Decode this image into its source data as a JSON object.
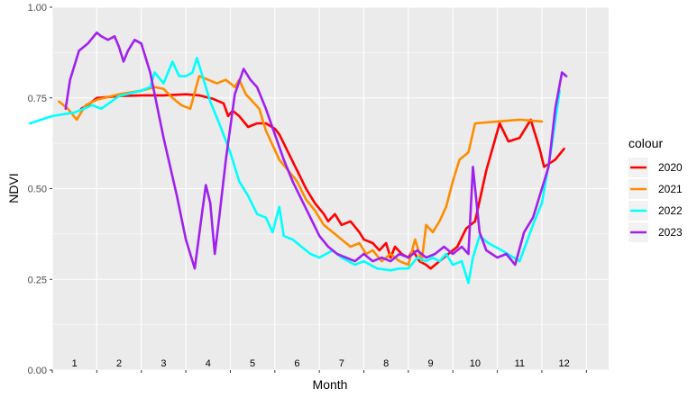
{
  "chart_data": {
    "type": "line",
    "xlabel": "Month",
    "ylabel": "NDVI",
    "xlim": [
      0,
      12.5
    ],
    "ylim": [
      0,
      1
    ],
    "x_ticks": [
      {
        "x": 0.5,
        "label": "1"
      },
      {
        "x": 1.5,
        "label": "2"
      },
      {
        "x": 2.5,
        "label": "3"
      },
      {
        "x": 3.5,
        "label": "4"
      },
      {
        "x": 4.5,
        "label": "5"
      },
      {
        "x": 5.5,
        "label": "6"
      },
      {
        "x": 6.5,
        "label": "7"
      },
      {
        "x": 7.5,
        "label": "8"
      },
      {
        "x": 8.5,
        "label": "9"
      },
      {
        "x": 9.5,
        "label": "10"
      },
      {
        "x": 10.5,
        "label": "11"
      },
      {
        "x": 11.5,
        "label": "12"
      }
    ],
    "y_ticks": [
      {
        "y": 0,
        "label": "0.00"
      },
      {
        "y": 0.25,
        "label": "0.25"
      },
      {
        "y": 0.5,
        "label": "0.50"
      },
      {
        "y": 0.75,
        "label": "0.75"
      },
      {
        "y": 1,
        "label": "1.00"
      }
    ],
    "grid": true,
    "legend": {
      "title": "colour",
      "position": "right"
    },
    "series": [
      {
        "name": "2020",
        "color": "#ff0000",
        "points": [
          [
            0.65,
            0.72
          ],
          [
            0.8,
            0.73
          ],
          [
            1.0,
            0.75
          ],
          [
            1.5,
            0.755
          ],
          [
            2.0,
            0.757
          ],
          [
            2.5,
            0.757
          ],
          [
            3.0,
            0.76
          ],
          [
            3.3,
            0.757
          ],
          [
            3.6,
            0.748
          ],
          [
            3.85,
            0.735
          ],
          [
            3.95,
            0.7
          ],
          [
            4.05,
            0.715
          ],
          [
            4.2,
            0.7
          ],
          [
            4.4,
            0.67
          ],
          [
            4.6,
            0.68
          ],
          [
            4.8,
            0.68
          ],
          [
            5.0,
            0.665
          ],
          [
            5.1,
            0.65
          ],
          [
            5.3,
            0.6
          ],
          [
            5.5,
            0.55
          ],
          [
            5.7,
            0.5
          ],
          [
            5.9,
            0.46
          ],
          [
            6.1,
            0.43
          ],
          [
            6.2,
            0.41
          ],
          [
            6.35,
            0.43
          ],
          [
            6.5,
            0.4
          ],
          [
            6.7,
            0.41
          ],
          [
            6.9,
            0.38
          ],
          [
            7.0,
            0.36
          ],
          [
            7.2,
            0.35
          ],
          [
            7.35,
            0.33
          ],
          [
            7.5,
            0.35
          ],
          [
            7.6,
            0.31
          ],
          [
            7.7,
            0.34
          ],
          [
            7.85,
            0.32
          ],
          [
            8.0,
            0.31
          ],
          [
            8.1,
            0.33
          ],
          [
            8.25,
            0.3
          ],
          [
            8.4,
            0.29
          ],
          [
            8.5,
            0.28
          ],
          [
            8.7,
            0.3
          ],
          [
            8.9,
            0.32
          ],
          [
            9.1,
            0.34
          ],
          [
            9.3,
            0.39
          ],
          [
            9.5,
            0.41
          ],
          [
            9.75,
            0.55
          ],
          [
            10.05,
            0.68
          ],
          [
            10.25,
            0.63
          ],
          [
            10.5,
            0.64
          ],
          [
            10.75,
            0.69
          ],
          [
            10.95,
            0.61
          ],
          [
            11.05,
            0.56
          ],
          [
            11.3,
            0.58
          ],
          [
            11.5,
            0.61
          ]
        ]
      },
      {
        "name": "2021",
        "color": "#ff8c00",
        "points": [
          [
            0.15,
            0.74
          ],
          [
            0.35,
            0.72
          ],
          [
            0.55,
            0.69
          ],
          [
            0.75,
            0.73
          ],
          [
            1.0,
            0.745
          ],
          [
            1.5,
            0.76
          ],
          [
            2.0,
            0.77
          ],
          [
            2.3,
            0.78
          ],
          [
            2.5,
            0.775
          ],
          [
            2.7,
            0.75
          ],
          [
            2.9,
            0.73
          ],
          [
            3.1,
            0.72
          ],
          [
            3.3,
            0.81
          ],
          [
            3.5,
            0.8
          ],
          [
            3.7,
            0.79
          ],
          [
            3.9,
            0.8
          ],
          [
            4.1,
            0.78
          ],
          [
            4.2,
            0.8
          ],
          [
            4.35,
            0.76
          ],
          [
            4.5,
            0.74
          ],
          [
            4.65,
            0.72
          ],
          [
            4.8,
            0.66
          ],
          [
            4.95,
            0.62
          ],
          [
            5.1,
            0.58
          ],
          [
            5.3,
            0.55
          ],
          [
            5.5,
            0.52
          ],
          [
            5.7,
            0.47
          ],
          [
            5.9,
            0.44
          ],
          [
            6.1,
            0.4
          ],
          [
            6.3,
            0.38
          ],
          [
            6.5,
            0.36
          ],
          [
            6.7,
            0.34
          ],
          [
            6.9,
            0.35
          ],
          [
            7.05,
            0.32
          ],
          [
            7.2,
            0.33
          ],
          [
            7.4,
            0.3
          ],
          [
            7.6,
            0.32
          ],
          [
            7.8,
            0.3
          ],
          [
            8.0,
            0.29
          ],
          [
            8.15,
            0.36
          ],
          [
            8.3,
            0.3
          ],
          [
            8.4,
            0.4
          ],
          [
            8.55,
            0.38
          ],
          [
            8.7,
            0.41
          ],
          [
            8.85,
            0.45
          ],
          [
            9.0,
            0.52
          ],
          [
            9.15,
            0.58
          ],
          [
            9.35,
            0.6
          ],
          [
            9.5,
            0.68
          ],
          [
            10.0,
            0.685
          ],
          [
            10.5,
            0.69
          ],
          [
            11.0,
            0.685
          ]
        ]
      },
      {
        "name": "2022",
        "color": "#00ffff",
        "points": [
          [
            -0.5,
            0.68
          ],
          [
            0.0,
            0.7
          ],
          [
            0.5,
            0.71
          ],
          [
            0.9,
            0.73
          ],
          [
            1.1,
            0.72
          ],
          [
            1.5,
            0.755
          ],
          [
            2.0,
            0.77
          ],
          [
            2.2,
            0.78
          ],
          [
            2.3,
            0.82
          ],
          [
            2.5,
            0.79
          ],
          [
            2.7,
            0.85
          ],
          [
            2.85,
            0.81
          ],
          [
            3.0,
            0.81
          ],
          [
            3.15,
            0.82
          ],
          [
            3.25,
            0.86
          ],
          [
            3.4,
            0.8
          ],
          [
            3.55,
            0.74
          ],
          [
            3.75,
            0.68
          ],
          [
            4.0,
            0.6
          ],
          [
            4.2,
            0.52
          ],
          [
            4.4,
            0.48
          ],
          [
            4.6,
            0.43
          ],
          [
            4.8,
            0.42
          ],
          [
            4.95,
            0.38
          ],
          [
            5.1,
            0.45
          ],
          [
            5.2,
            0.37
          ],
          [
            5.4,
            0.36
          ],
          [
            5.6,
            0.34
          ],
          [
            5.8,
            0.32
          ],
          [
            6.0,
            0.31
          ],
          [
            6.3,
            0.33
          ],
          [
            6.5,
            0.31
          ],
          [
            6.8,
            0.29
          ],
          [
            7.0,
            0.3
          ],
          [
            7.3,
            0.28
          ],
          [
            7.6,
            0.275
          ],
          [
            7.8,
            0.28
          ],
          [
            8.0,
            0.28
          ],
          [
            8.2,
            0.31
          ],
          [
            8.4,
            0.3
          ],
          [
            8.55,
            0.31
          ],
          [
            8.7,
            0.3
          ],
          [
            8.85,
            0.32
          ],
          [
            9.0,
            0.29
          ],
          [
            9.2,
            0.3
          ],
          [
            9.35,
            0.24
          ],
          [
            9.45,
            0.31
          ],
          [
            9.6,
            0.37
          ],
          [
            9.8,
            0.35
          ],
          [
            10.1,
            0.33
          ],
          [
            10.5,
            0.3
          ],
          [
            10.65,
            0.35
          ],
          [
            10.8,
            0.4
          ],
          [
            11.0,
            0.46
          ],
          [
            11.2,
            0.6
          ],
          [
            11.4,
            0.77
          ]
        ]
      },
      {
        "name": "2023",
        "color": "#a020f0",
        "points": [
          [
            0.3,
            0.72
          ],
          [
            0.4,
            0.8
          ],
          [
            0.6,
            0.88
          ],
          [
            0.8,
            0.9
          ],
          [
            1.0,
            0.93
          ],
          [
            1.1,
            0.92
          ],
          [
            1.25,
            0.91
          ],
          [
            1.4,
            0.92
          ],
          [
            1.5,
            0.89
          ],
          [
            1.6,
            0.85
          ],
          [
            1.7,
            0.88
          ],
          [
            1.85,
            0.91
          ],
          [
            2.0,
            0.9
          ],
          [
            2.2,
            0.82
          ],
          [
            2.5,
            0.64
          ],
          [
            2.8,
            0.48
          ],
          [
            3.0,
            0.36
          ],
          [
            3.2,
            0.28
          ],
          [
            3.35,
            0.42
          ],
          [
            3.45,
            0.51
          ],
          [
            3.55,
            0.46
          ],
          [
            3.65,
            0.32
          ],
          [
            3.75,
            0.42
          ],
          [
            3.9,
            0.58
          ],
          [
            4.1,
            0.76
          ],
          [
            4.3,
            0.83
          ],
          [
            4.45,
            0.8
          ],
          [
            4.6,
            0.78
          ],
          [
            4.8,
            0.72
          ],
          [
            5.0,
            0.65
          ],
          [
            5.2,
            0.58
          ],
          [
            5.4,
            0.52
          ],
          [
            5.6,
            0.47
          ],
          [
            5.8,
            0.42
          ],
          [
            6.0,
            0.37
          ],
          [
            6.2,
            0.34
          ],
          [
            6.4,
            0.32
          ],
          [
            6.6,
            0.31
          ],
          [
            6.8,
            0.3
          ],
          [
            7.0,
            0.32
          ],
          [
            7.2,
            0.3
          ],
          [
            7.4,
            0.31
          ],
          [
            7.6,
            0.3
          ],
          [
            7.8,
            0.32
          ],
          [
            8.0,
            0.31
          ],
          [
            8.2,
            0.33
          ],
          [
            8.4,
            0.31
          ],
          [
            8.6,
            0.32
          ],
          [
            8.8,
            0.34
          ],
          [
            9.0,
            0.32
          ],
          [
            9.2,
            0.34
          ],
          [
            9.35,
            0.32
          ],
          [
            9.45,
            0.56
          ],
          [
            9.6,
            0.38
          ],
          [
            9.75,
            0.33
          ],
          [
            10.0,
            0.31
          ],
          [
            10.2,
            0.32
          ],
          [
            10.4,
            0.29
          ],
          [
            10.6,
            0.38
          ],
          [
            10.8,
            0.42
          ],
          [
            10.95,
            0.48
          ],
          [
            11.15,
            0.56
          ],
          [
            11.3,
            0.72
          ],
          [
            11.45,
            0.82
          ],
          [
            11.55,
            0.81
          ]
        ]
      }
    ]
  }
}
